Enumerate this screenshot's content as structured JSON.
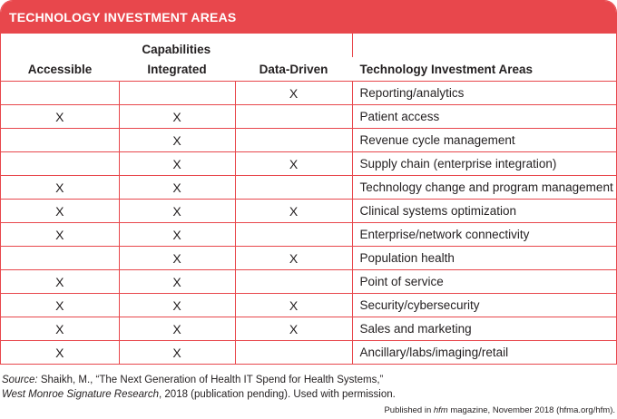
{
  "title": "TECHNOLOGY INVESTMENT AREAS",
  "table": {
    "capabilities_label": "Capabilities",
    "columns": [
      "Accessible",
      "Integrated",
      "Data-Driven",
      "Technology Investment Areas"
    ],
    "rows": [
      {
        "accessible": "",
        "integrated": "",
        "data_driven": "X",
        "area": "Reporting/analytics"
      },
      {
        "accessible": "X",
        "integrated": "X",
        "data_driven": "",
        "area": "Patient access"
      },
      {
        "accessible": "",
        "integrated": "X",
        "data_driven": "",
        "area": "Revenue cycle management"
      },
      {
        "accessible": "",
        "integrated": "X",
        "data_driven": "X",
        "area": "Supply chain (enterprise integration)"
      },
      {
        "accessible": "X",
        "integrated": "X",
        "data_driven": "",
        "area": "Technology change and program management"
      },
      {
        "accessible": "X",
        "integrated": "X",
        "data_driven": "X",
        "area": "Clinical systems optimization"
      },
      {
        "accessible": "X",
        "integrated": "X",
        "data_driven": "",
        "area": "Enterprise/network connectivity"
      },
      {
        "accessible": "",
        "integrated": "X",
        "data_driven": "X",
        "area": "Population health"
      },
      {
        "accessible": "X",
        "integrated": "X",
        "data_driven": "",
        "area": "Point of service"
      },
      {
        "accessible": "X",
        "integrated": "X",
        "data_driven": "X",
        "area": "Security/cybersecurity"
      },
      {
        "accessible": "X",
        "integrated": "X",
        "data_driven": "X",
        "area": "Sales and marketing"
      },
      {
        "accessible": "X",
        "integrated": "X",
        "data_driven": "",
        "area": "Ancillary/labs/imaging/retail"
      }
    ]
  },
  "source": {
    "label": "Source:",
    "line1": " Shaikh, M., “The Next Generation of Health IT Spend for Health Systems,”",
    "line2_italic": "West Monroe Signature Research",
    "line2_rest": ", 2018 (publication pending). Used with permission."
  },
  "published": {
    "prefix": "Published in ",
    "magazine": "hfm",
    "suffix": " magazine, November 2018 (hfma.org/hfm)."
  },
  "colors": {
    "accent": "#e8474c",
    "text": "#231f20",
    "background": "#ffffff"
  }
}
